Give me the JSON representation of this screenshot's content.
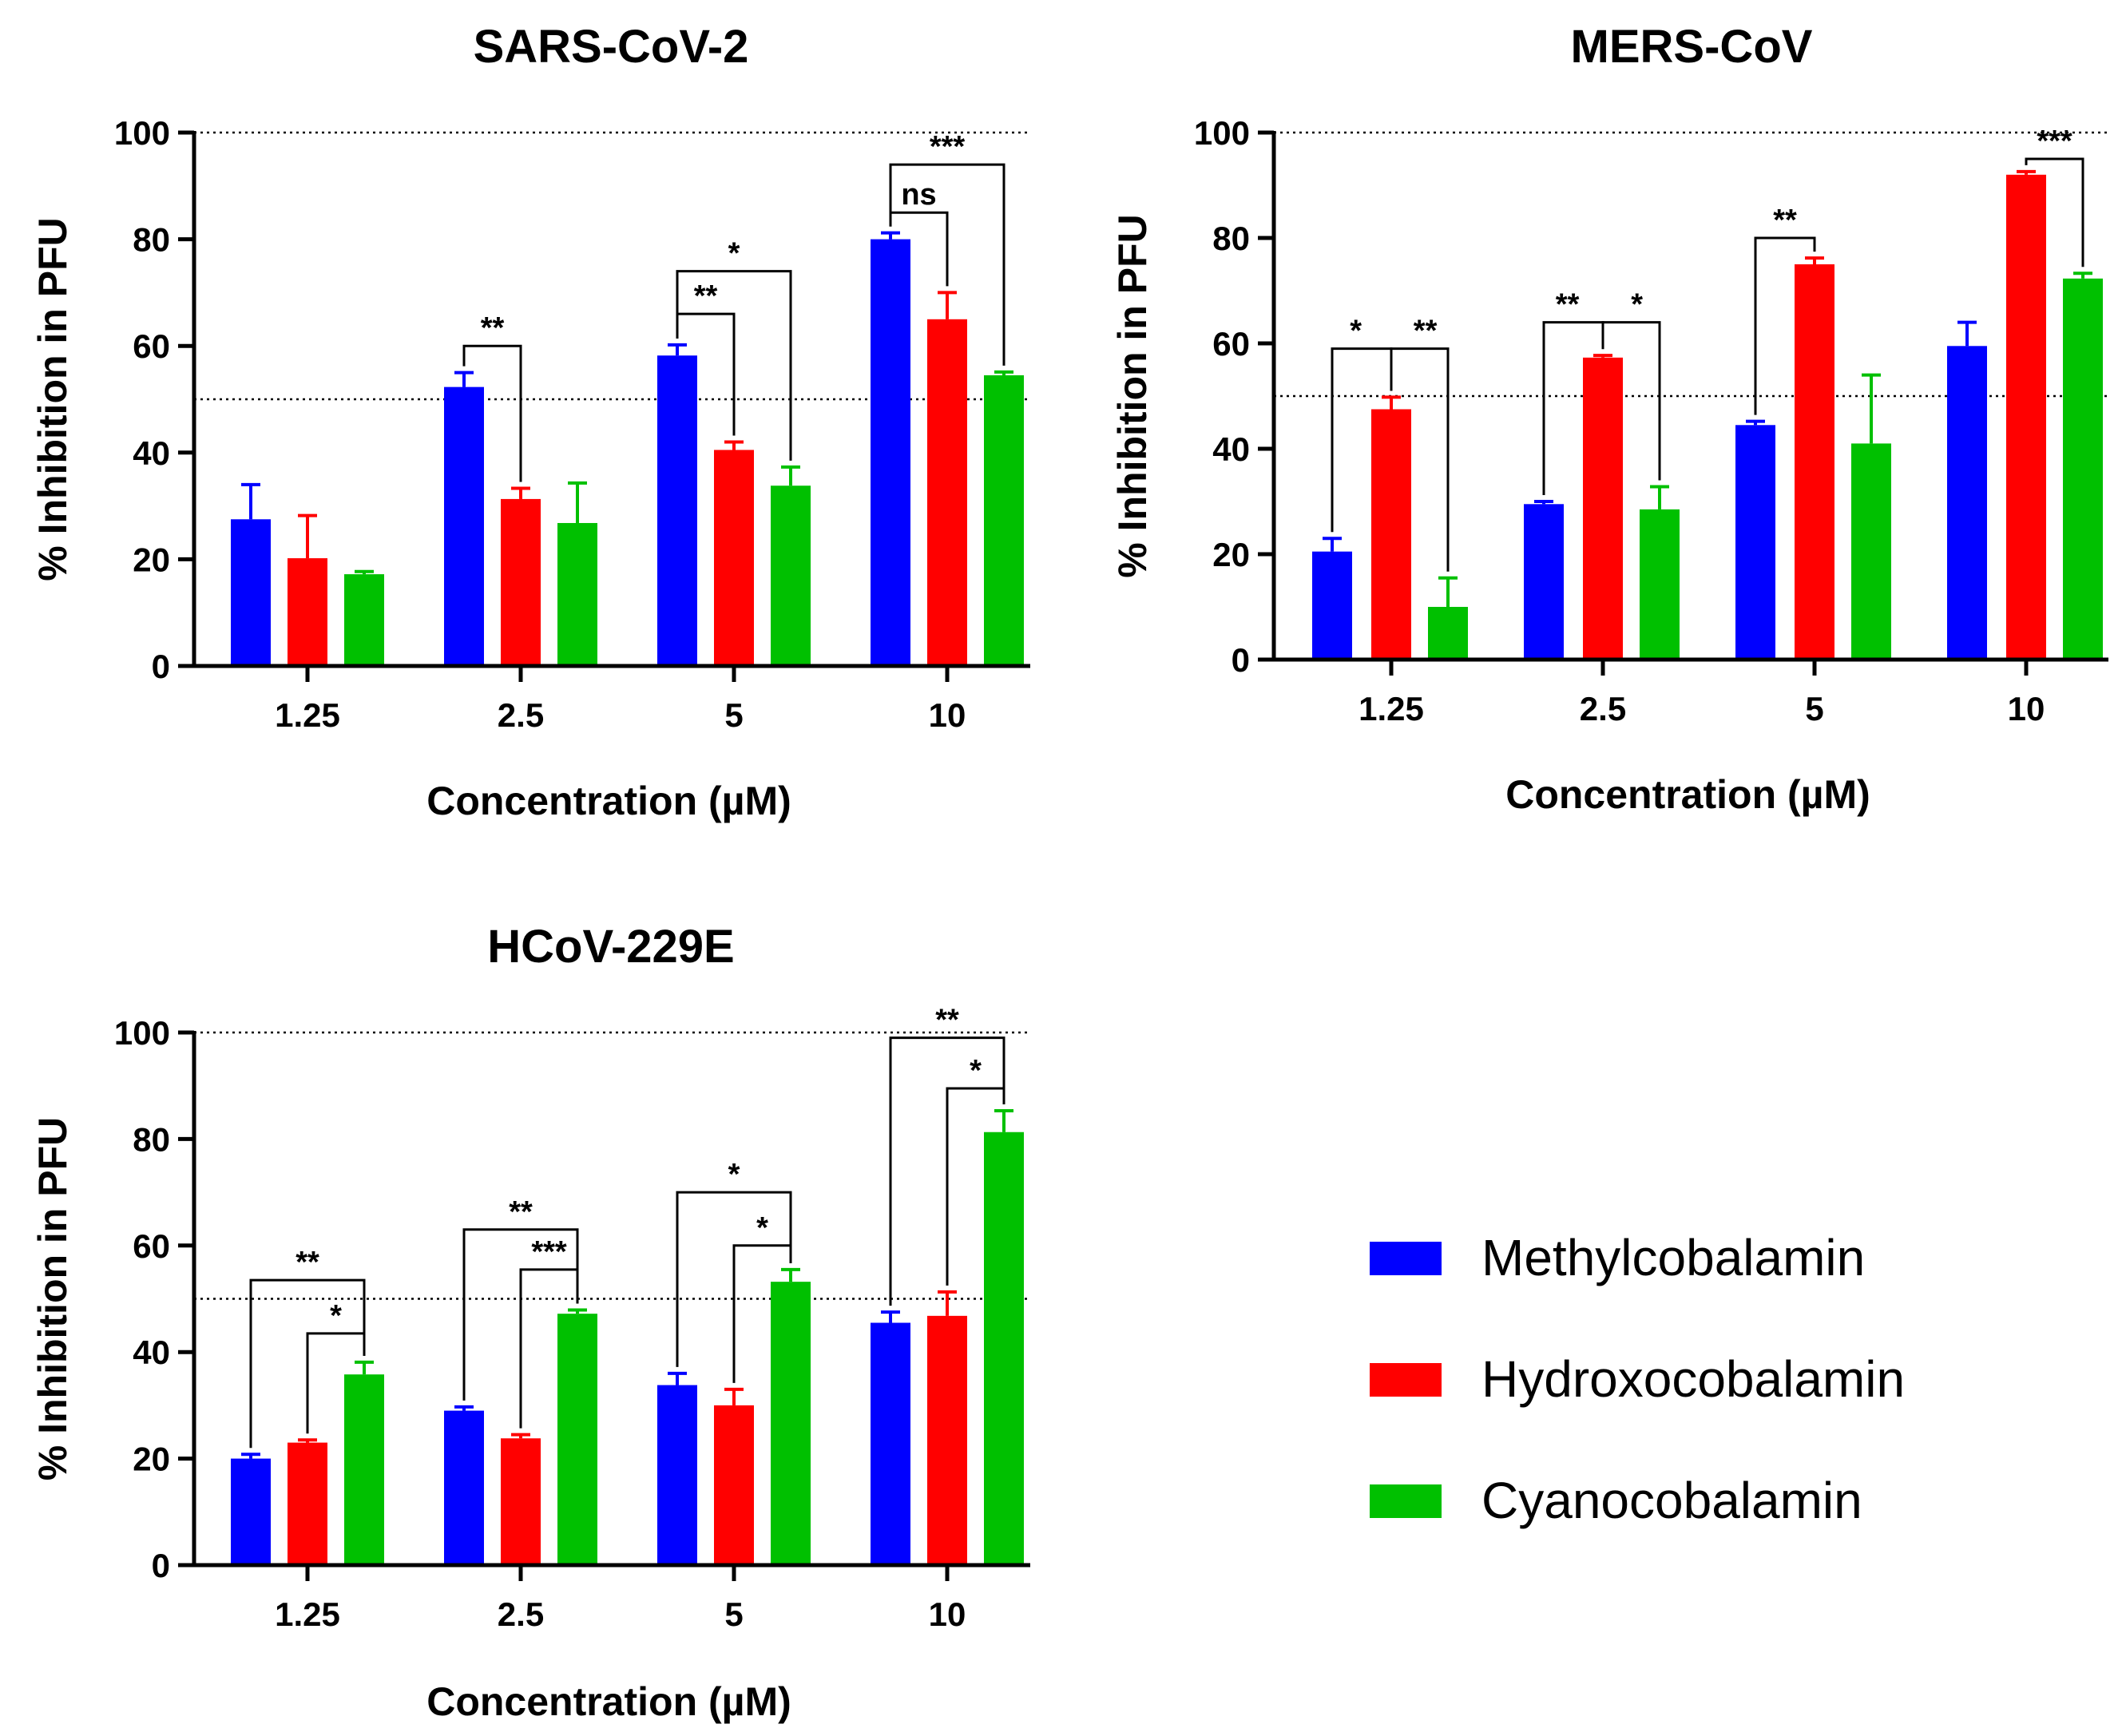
{
  "chart_data": [
    {
      "type": "bar",
      "title": "SARS-CoV-2",
      "xlabel": "Concentration (µM)",
      "ylabel": "% Inhibition in PFU",
      "ylim": [
        0,
        100
      ],
      "yticks": [
        "0",
        "20",
        "40",
        "60",
        "80",
        "100"
      ],
      "reference_lines": [
        50,
        100
      ],
      "categories": [
        "1.25",
        "2.5",
        "5",
        "10"
      ],
      "series": [
        {
          "name": "Methylcobalamin",
          "values": [
            27.5,
            52.3,
            58.2,
            80.0
          ],
          "errors": [
            6.5,
            2.7,
            2.0,
            1.2
          ]
        },
        {
          "name": "Hydroxocobalamin",
          "values": [
            20.2,
            31.3,
            40.5,
            65.0
          ],
          "errors": [
            8.0,
            2.0,
            1.5,
            5.0
          ]
        },
        {
          "name": "Cyanocobalamin",
          "values": [
            17.2,
            26.8,
            33.8,
            54.5
          ],
          "errors": [
            0.5,
            7.5,
            3.5,
            0.6
          ]
        }
      ],
      "annotations": [
        {
          "label": "**",
          "category": 1,
          "from": 0,
          "to": 1,
          "y": 60
        },
        {
          "label": "**",
          "category": 2,
          "from": 0,
          "to": 1,
          "y": 66
        },
        {
          "label": "*",
          "category": 2,
          "from": 0,
          "to": 2,
          "y": 74
        },
        {
          "label": "ns",
          "category": 3,
          "from": 0,
          "to": 1,
          "y": 85
        },
        {
          "label": "***",
          "category": 3,
          "from": 0,
          "to": 2,
          "y": 94
        }
      ]
    },
    {
      "type": "bar",
      "title": "MERS-CoV",
      "xlabel": "Concentration (µM)",
      "ylabel": "% Inhibition in PFU",
      "ylim": [
        0,
        100
      ],
      "yticks": [
        "0",
        "20",
        "40",
        "60",
        "80",
        "100"
      ],
      "reference_lines": [
        50,
        100
      ],
      "categories": [
        "1.25",
        "2.5",
        "5",
        "10"
      ],
      "series": [
        {
          "name": "Methylcobalamin",
          "values": [
            20.5,
            29.5,
            44.5,
            59.5
          ],
          "errors": [
            2.5,
            0.5,
            0.7,
            4.5
          ]
        },
        {
          "name": "Hydroxocobalamin",
          "values": [
            47.5,
            57.3,
            75.0,
            92.0
          ],
          "errors": [
            2.3,
            0.4,
            1.2,
            0.6
          ]
        },
        {
          "name": "Cyanocobalamin",
          "values": [
            10.0,
            28.5,
            41.0,
            72.3
          ],
          "errors": [
            5.5,
            4.3,
            13.0,
            1.0
          ]
        }
      ],
      "annotations": [
        {
          "label": "*",
          "category": 0,
          "from": 0,
          "to": 1,
          "y": 59,
          "tip": "left"
        },
        {
          "label": "**",
          "category": 0,
          "from": 1,
          "to": 2,
          "y": 59,
          "tip": "right"
        },
        {
          "label": "**",
          "category": 1,
          "from": 0,
          "to": 1,
          "y": 64,
          "tip": "left"
        },
        {
          "label": "*",
          "category": 1,
          "from": 1,
          "to": 2,
          "y": 64,
          "tip": "right"
        },
        {
          "label": "**",
          "category": 2,
          "from": 0,
          "to": 1,
          "y": 80
        },
        {
          "label": "***",
          "category": 3,
          "from": 1,
          "to": 2,
          "y": 95
        }
      ]
    },
    {
      "type": "bar",
      "title": "HCoV-229E",
      "xlabel": "Concentration (µM)",
      "ylabel": "% Inhibition in PFU",
      "ylim": [
        0,
        100
      ],
      "yticks": [
        "0",
        "20",
        "40",
        "60",
        "80",
        "100"
      ],
      "reference_lines": [
        50,
        100
      ],
      "categories": [
        "1.25",
        "2.5",
        "5",
        "10"
      ],
      "series": [
        {
          "name": "Methylcobalamin",
          "values": [
            20.0,
            29.0,
            33.8,
            45.5
          ],
          "errors": [
            0.8,
            0.7,
            2.2,
            2.0
          ]
        },
        {
          "name": "Hydroxocobalamin",
          "values": [
            23.0,
            23.8,
            30.0,
            46.8
          ],
          "errors": [
            0.5,
            0.7,
            3.0,
            4.5
          ]
        },
        {
          "name": "Cyanocobalamin",
          "values": [
            35.8,
            47.2,
            53.2,
            81.3
          ],
          "errors": [
            2.3,
            0.7,
            2.3,
            4.0
          ]
        }
      ],
      "annotations": [
        {
          "label": "*",
          "category": 0,
          "from": 1,
          "to": 2,
          "y": 43.5
        },
        {
          "label": "**",
          "category": 0,
          "from": 0,
          "to": 2,
          "y": 53.5
        },
        {
          "label": "***",
          "category": 1,
          "from": 1,
          "to": 2,
          "y": 55.5
        },
        {
          "label": "**",
          "category": 1,
          "from": 0,
          "to": 2,
          "y": 63
        },
        {
          "label": "*",
          "category": 2,
          "from": 1,
          "to": 2,
          "y": 60
        },
        {
          "label": "*",
          "category": 2,
          "from": 0,
          "to": 2,
          "y": 70
        },
        {
          "label": "*",
          "category": 3,
          "from": 1,
          "to": 2,
          "y": 89.5
        },
        {
          "label": "**",
          "category": 3,
          "from": 0,
          "to": 2,
          "y": 99
        }
      ]
    }
  ],
  "legend": {
    "items": [
      {
        "name": "Methylcobalamin",
        "color": "#0000ff"
      },
      {
        "name": "Hydroxocobalamin",
        "color": "#ff0000"
      },
      {
        "name": "Cyanocobalamin",
        "color": "#00c000"
      }
    ]
  },
  "colors": [
    "#0000ff",
    "#ff0000",
    "#00c000"
  ]
}
